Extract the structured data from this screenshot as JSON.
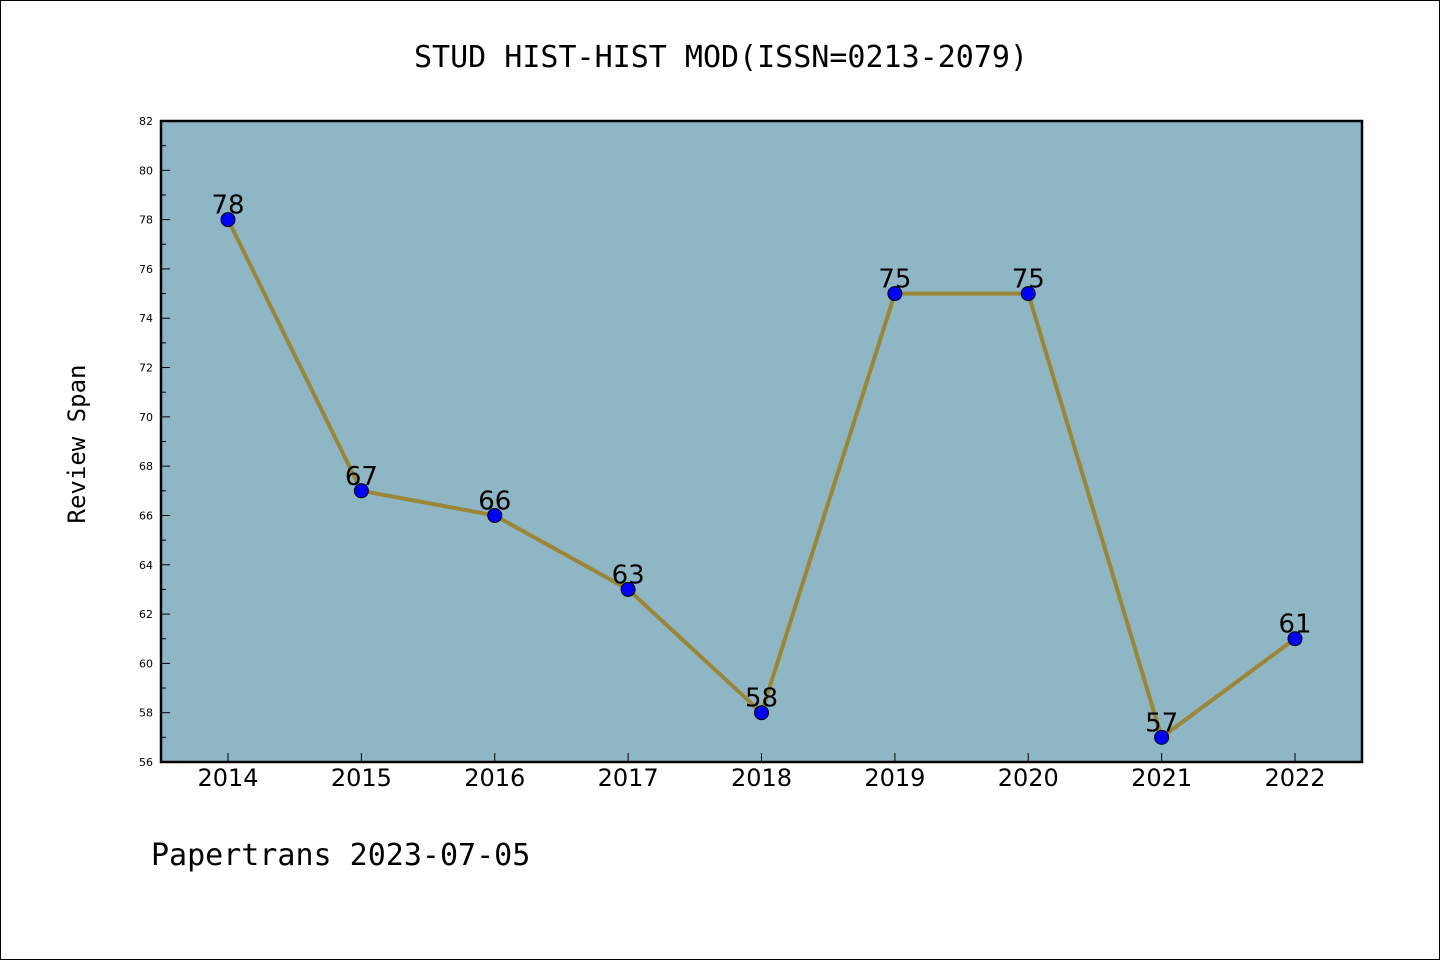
{
  "chart_data": {
    "type": "line",
    "title": "STUD HIST-HIST MOD(ISSN=0213-2079)",
    "xlabel": "",
    "ylabel": "Review Span",
    "categories": [
      "2014",
      "2015",
      "2016",
      "2017",
      "2018",
      "2019",
      "2020",
      "2021",
      "2022"
    ],
    "series": [
      {
        "values": [
          78,
          67,
          66,
          63,
          58,
          75,
          75,
          57,
          61
        ]
      }
    ],
    "data_labels": [
      "78",
      "67",
      "66",
      "63",
      "58",
      "75",
      "75",
      "57",
      "61"
    ],
    "ylim": [
      56,
      82
    ],
    "yticks": [
      "56",
      "58",
      "60",
      "62",
      "64",
      "66",
      "68",
      "70",
      "72",
      "74",
      "76",
      "78",
      "80",
      "82"
    ],
    "grid": false,
    "legend": "none",
    "colors": {
      "plot_background": "#8fb6c4",
      "line": "#9a8636",
      "marker": "#0000ff",
      "axis": "#000000"
    }
  },
  "footer": "Papertrans 2023-07-05"
}
